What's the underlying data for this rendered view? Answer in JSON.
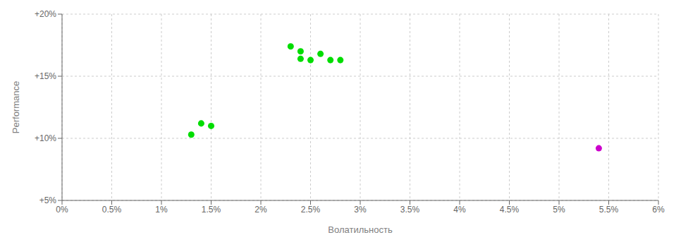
{
  "chart_data": {
    "type": "scatter",
    "xlabel": "Волатильность",
    "ylabel": "Performance",
    "xlim": [
      0.0,
      0.06
    ],
    "ylim": [
      0.05,
      0.2
    ],
    "xticks": [
      {
        "value": 0.0,
        "label": "0%"
      },
      {
        "value": 0.005,
        "label": "0.5%"
      },
      {
        "value": 0.01,
        "label": "1%"
      },
      {
        "value": 0.015,
        "label": "1.5%"
      },
      {
        "value": 0.02,
        "label": "2%"
      },
      {
        "value": 0.025,
        "label": "2.5%"
      },
      {
        "value": 0.03,
        "label": "3%"
      },
      {
        "value": 0.035,
        "label": "3.5%"
      },
      {
        "value": 0.04,
        "label": "4%"
      },
      {
        "value": 0.045,
        "label": "4.5%"
      },
      {
        "value": 0.05,
        "label": "5%"
      },
      {
        "value": 0.055,
        "label": "5.5%"
      },
      {
        "value": 0.06,
        "label": "6%"
      }
    ],
    "yticks": [
      {
        "value": 0.05,
        "label": "+5%"
      },
      {
        "value": 0.1,
        "label": "+10%"
      },
      {
        "value": 0.15,
        "label": "+15%"
      },
      {
        "value": 0.2,
        "label": "+20%"
      }
    ],
    "grid": true,
    "series": [
      {
        "color": "#00dd00",
        "x": [
          0.013,
          0.014,
          0.015,
          0.023,
          0.024,
          0.024,
          0.025,
          0.026,
          0.027,
          0.028
        ],
        "values": [
          0.103,
          0.112,
          0.11,
          0.174,
          0.17,
          0.164,
          0.163,
          0.168,
          0.163,
          0.163
        ]
      },
      {
        "color": "#cc00cc",
        "x": [
          0.054
        ],
        "values": [
          0.092
        ]
      }
    ]
  }
}
